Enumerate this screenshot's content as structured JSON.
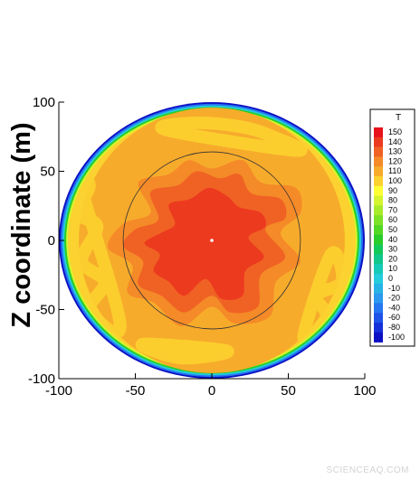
{
  "chart_data": {
    "type": "heatmap",
    "title": "",
    "xlabel": "",
    "ylabel": "Z coordinate (m)",
    "xlim": [
      -100,
      100
    ],
    "ylim": [
      -100,
      100
    ],
    "x_ticks": [
      "-100",
      "-50",
      "0",
      "50",
      "100"
    ],
    "y_ticks": [
      "100",
      "50",
      "0",
      "-50",
      "-100"
    ],
    "x_tick_values": [
      -100,
      -50,
      0,
      50,
      100
    ],
    "y_tick_values": [
      100,
      50,
      0,
      -50,
      -100
    ],
    "domain_radius": 100,
    "inner_circle_radius": 64,
    "colorbar": {
      "title": "T",
      "levels": [
        150,
        140,
        130,
        120,
        110,
        100,
        90,
        80,
        70,
        60,
        50,
        40,
        30,
        20,
        10,
        0,
        -10,
        -20,
        -40,
        -60,
        -80,
        -100
      ],
      "labels": [
        "150",
        "140",
        "130",
        "120",
        "110",
        "100",
        "90",
        "80",
        "70",
        "60",
        "50",
        "40",
        "30",
        "20",
        "10",
        "0",
        "-10",
        "-20",
        "-40",
        "-60",
        "-80",
        "-100"
      ],
      "colors": [
        "#e8121c",
        "#ec3a1f",
        "#f06224",
        "#f58a28",
        "#f7ab2b",
        "#fbd22f",
        "#ffff33",
        "#d4f52f",
        "#a8eb2b",
        "#7de126",
        "#52d724",
        "#28cd2a",
        "#13c95a",
        "#11c78b",
        "#15cab9",
        "#24ccdc",
        "#27b3e6",
        "#2a99ee",
        "#2576f0",
        "#1f53e8",
        "#1530d8",
        "#0c10c4"
      ]
    },
    "fields": {
      "background_T": 110,
      "ring_T_from_outer": [
        -100,
        -40,
        0,
        40,
        80,
        100
      ],
      "patches": [
        {
          "T": 100,
          "points": [
            [
              -90,
              55
            ],
            [
              -80,
              40
            ],
            [
              -88,
              20
            ],
            [
              -75,
              10
            ],
            [
              -85,
              -15
            ],
            [
              -70,
              -30
            ],
            [
              -80,
              -50
            ],
            [
              -60,
              -60
            ]
          ]
        },
        {
          "T": 100,
          "points": [
            [
              60,
              -70
            ],
            [
              75,
              -55
            ],
            [
              68,
              -40
            ],
            [
              85,
              -30
            ],
            [
              78,
              -10
            ]
          ]
        },
        {
          "T": 100,
          "points": [
            [
              -30,
              80
            ],
            [
              -10,
              85
            ],
            [
              20,
              82
            ],
            [
              40,
              75
            ],
            [
              55,
              65
            ]
          ]
        },
        {
          "T": 100,
          "points": [
            [
              10,
              -80
            ],
            [
              -20,
              -85
            ],
            [
              -45,
              -75
            ]
          ]
        }
      ],
      "hot_region": {
        "T": 120,
        "points": [
          [
            -15,
            58
          ],
          [
            0,
            52
          ],
          [
            20,
            58
          ],
          [
            32,
            42
          ],
          [
            55,
            38
          ],
          [
            58,
            20
          ],
          [
            45,
            5
          ],
          [
            58,
            -15
          ],
          [
            42,
            -30
          ],
          [
            38,
            -55
          ],
          [
            15,
            -60
          ],
          [
            0,
            -48
          ],
          [
            -20,
            -62
          ],
          [
            -38,
            -45
          ],
          [
            -55,
            -38
          ],
          [
            -52,
            -18
          ],
          [
            -68,
            -5
          ],
          [
            -58,
            12
          ],
          [
            -40,
            20
          ],
          [
            -48,
            42
          ],
          [
            -28,
            48
          ]
        ]
      },
      "core_region": {
        "T": 130,
        "points": [
          [
            -10,
            50
          ],
          [
            5,
            45
          ],
          [
            18,
            48
          ],
          [
            26,
            34
          ],
          [
            45,
            30
          ],
          [
            48,
            16
          ],
          [
            35,
            8
          ],
          [
            48,
            -12
          ],
          [
            32,
            -25
          ],
          [
            30,
            -48
          ],
          [
            12,
            -52
          ],
          [
            0,
            -40
          ],
          [
            -18,
            -52
          ],
          [
            -33,
            -40
          ],
          [
            -48,
            -32
          ],
          [
            -45,
            -15
          ],
          [
            -58,
            -4
          ],
          [
            -50,
            8
          ],
          [
            -35,
            15
          ],
          [
            -40,
            35
          ],
          [
            -22,
            40
          ]
        ]
      },
      "peak_region": {
        "T": 140,
        "points": [
          [
            -2,
            38
          ],
          [
            10,
            32
          ],
          [
            18,
            24
          ],
          [
            32,
            20
          ],
          [
            35,
            10
          ],
          [
            24,
            2
          ],
          [
            34,
            -12
          ],
          [
            22,
            -22
          ],
          [
            20,
            -40
          ],
          [
            6,
            -42
          ],
          [
            -4,
            -28
          ],
          [
            -18,
            -40
          ],
          [
            -28,
            -30
          ],
          [
            -38,
            -22
          ],
          [
            -34,
            -10
          ],
          [
            -44,
            -2
          ],
          [
            -32,
            6
          ],
          [
            -24,
            12
          ],
          [
            -28,
            26
          ],
          [
            -14,
            30
          ]
        ]
      },
      "center_marker": [
        0,
        0
      ]
    }
  },
  "watermark": "SCIENCEAQ.COM"
}
